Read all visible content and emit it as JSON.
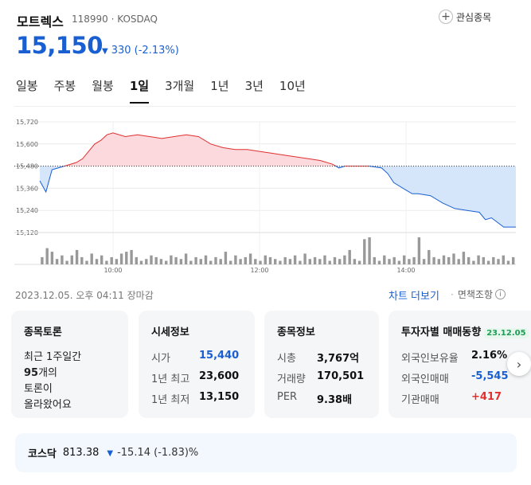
{
  "header": {
    "name": "모트렉스",
    "code_market": "118990 · KOSDAQ",
    "watch_label": "관심종목",
    "price": "15,150",
    "change_amount": "330",
    "change_percent": "(-2.13%)"
  },
  "tabs": [
    "일봉",
    "주봉",
    "월봉",
    "1일",
    "3개월",
    "1년",
    "3년",
    "10년"
  ],
  "active_tab": "1일",
  "timestamp": "2023.12.05. 오후 04:11 장마감",
  "links": {
    "more": "차트 더보기",
    "disclaimer": "면책조항"
  },
  "cards": {
    "discussion": {
      "title": "종목토론",
      "line1": "최근 1주일간",
      "count": "95",
      "count_suffix": "개의",
      "line3": "토론이",
      "line4": "올라왔어요"
    },
    "quote": {
      "title": "시세정보",
      "rows": [
        {
          "label": "시가",
          "value": "15,440"
        },
        {
          "label": "1년 최고",
          "value": "23,600"
        },
        {
          "label": "1년 최저",
          "value": "13,150"
        }
      ]
    },
    "info": {
      "title": "종목정보",
      "rows": [
        {
          "label": "시총",
          "value": "3,767억"
        },
        {
          "label": "거래량",
          "value": "170,501"
        },
        {
          "label": "PER",
          "value": "9.38배"
        }
      ]
    },
    "investor": {
      "title": "투자자별 매매동향",
      "date": "23.12.05",
      "rows": [
        {
          "label": "외국인보유율",
          "value": "2.16%"
        },
        {
          "label": "외국인매매",
          "value": "-5,545"
        },
        {
          "label": "기관매매",
          "value": "+417"
        }
      ]
    }
  },
  "index": {
    "name": "코스닥",
    "value": "813.38",
    "change": "-15.14 (-1.83)%"
  },
  "colors": {
    "up": "#e03131",
    "down": "#1a5fd1",
    "up_fill": "#fbd9dc",
    "down_fill": "#d5e6fb",
    "volume": "#999999",
    "prev_close_line": "#333333"
  },
  "chart_data": {
    "type": "area",
    "x_range": [
      "09:00",
      "15:30"
    ],
    "y_ticks": [
      15720,
      15600,
      15480,
      15360,
      15240,
      15120
    ],
    "ylim": [
      15120,
      15720
    ],
    "x_ticks": [
      "10:00",
      "12:00",
      "14:00"
    ],
    "reference_value": 15480,
    "price_series": [
      [
        "09:00",
        15400
      ],
      [
        "09:05",
        15340
      ],
      [
        "09:10",
        15460
      ],
      [
        "09:15",
        15470
      ],
      [
        "09:20",
        15480
      ],
      [
        "09:30",
        15500
      ],
      [
        "09:35",
        15520
      ],
      [
        "09:40",
        15560
      ],
      [
        "09:45",
        15600
      ],
      [
        "09:50",
        15620
      ],
      [
        "09:55",
        15650
      ],
      [
        "10:00",
        15660
      ],
      [
        "10:10",
        15640
      ],
      [
        "10:20",
        15650
      ],
      [
        "10:30",
        15640
      ],
      [
        "10:40",
        15630
      ],
      [
        "10:50",
        15640
      ],
      [
        "11:00",
        15650
      ],
      [
        "11:10",
        15640
      ],
      [
        "11:20",
        15600
      ],
      [
        "11:30",
        15580
      ],
      [
        "11:40",
        15570
      ],
      [
        "11:50",
        15570
      ],
      [
        "12:00",
        15560
      ],
      [
        "12:10",
        15550
      ],
      [
        "12:20",
        15540
      ],
      [
        "12:30",
        15530
      ],
      [
        "12:40",
        15520
      ],
      [
        "12:50",
        15510
      ],
      [
        "13:00",
        15490
      ],
      [
        "13:05",
        15470
      ],
      [
        "13:10",
        15480
      ],
      [
        "13:20",
        15480
      ],
      [
        "13:30",
        15480
      ],
      [
        "13:40",
        15470
      ],
      [
        "13:45",
        15440
      ],
      [
        "13:50",
        15390
      ],
      [
        "14:00",
        15350
      ],
      [
        "14:05",
        15330
      ],
      [
        "14:10",
        15330
      ],
      [
        "14:20",
        15320
      ],
      [
        "14:30",
        15280
      ],
      [
        "14:40",
        15250
      ],
      [
        "14:50",
        15240
      ],
      [
        "15:00",
        15230
      ],
      [
        "15:05",
        15190
      ],
      [
        "15:10",
        15200
      ],
      [
        "15:20",
        15150
      ],
      [
        "15:30",
        15150
      ]
    ],
    "volume_series": [
      4,
      9,
      7,
      3,
      5,
      2,
      5,
      8,
      4,
      2,
      6,
      3,
      5,
      2,
      4,
      3,
      6,
      7,
      8,
      4,
      2,
      3,
      5,
      4,
      3,
      2,
      5,
      4,
      3,
      6,
      2,
      4,
      3,
      5,
      2,
      4,
      3,
      7,
      2,
      5,
      3,
      4,
      6,
      3,
      2,
      5,
      4,
      3,
      2,
      4,
      3,
      5,
      2,
      6,
      3,
      4,
      3,
      5,
      2,
      4,
      3,
      5,
      8,
      3,
      2,
      14,
      15,
      4,
      2,
      5,
      3,
      4,
      2,
      5,
      3,
      4,
      15,
      3,
      8,
      4,
      3,
      5,
      4,
      6,
      3,
      7,
      4,
      2,
      5,
      4,
      2,
      4,
      3,
      5,
      2,
      4
    ]
  }
}
